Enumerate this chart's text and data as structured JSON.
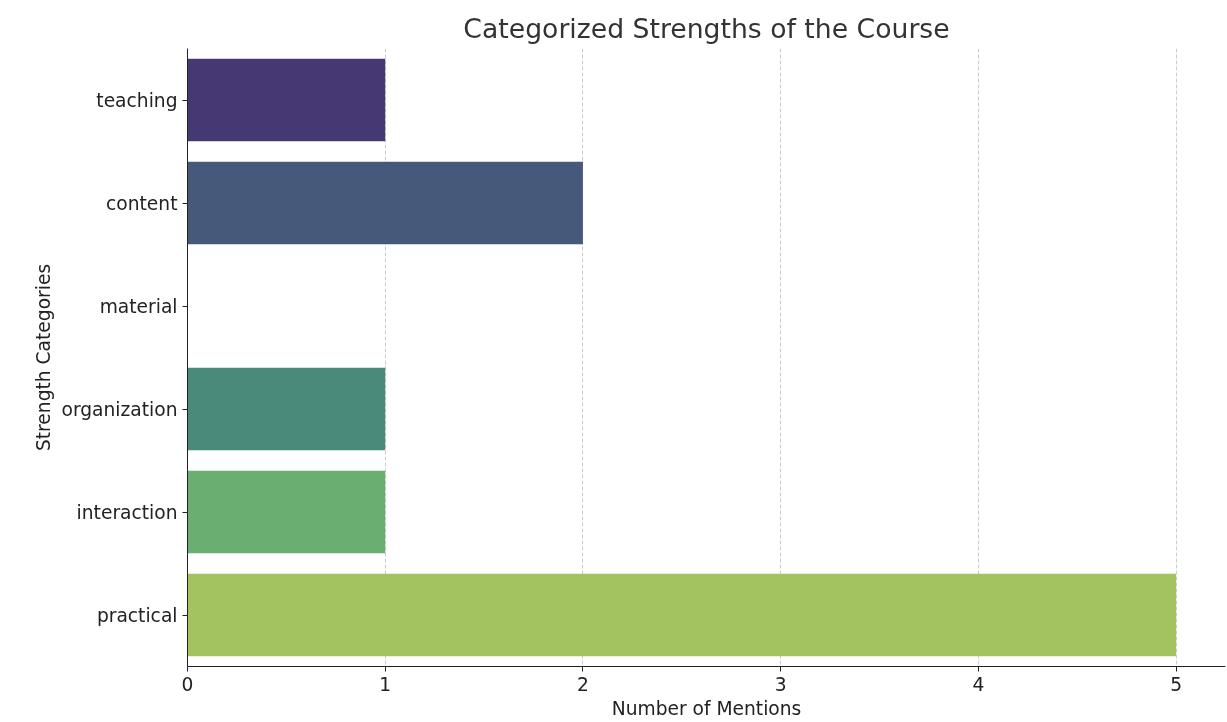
{
  "chart_data": {
    "type": "bar",
    "orientation": "horizontal",
    "title": "Categorized Strengths of the Course",
    "xlabel": "Number of Mentions",
    "ylabel": "Strength Categories",
    "categories": [
      "teaching",
      "content",
      "material",
      "organization",
      "interaction",
      "practical"
    ],
    "values": [
      1,
      2,
      0,
      1,
      1,
      5
    ],
    "colors": [
      "#463872",
      "#46597b",
      "#3e7a8a",
      "#4a8a7a",
      "#6aae72",
      "#a2c35f"
    ],
    "xlim": [
      0,
      5.25
    ],
    "xticks": [
      0,
      1,
      2,
      3,
      4,
      5
    ],
    "grid": "x"
  }
}
